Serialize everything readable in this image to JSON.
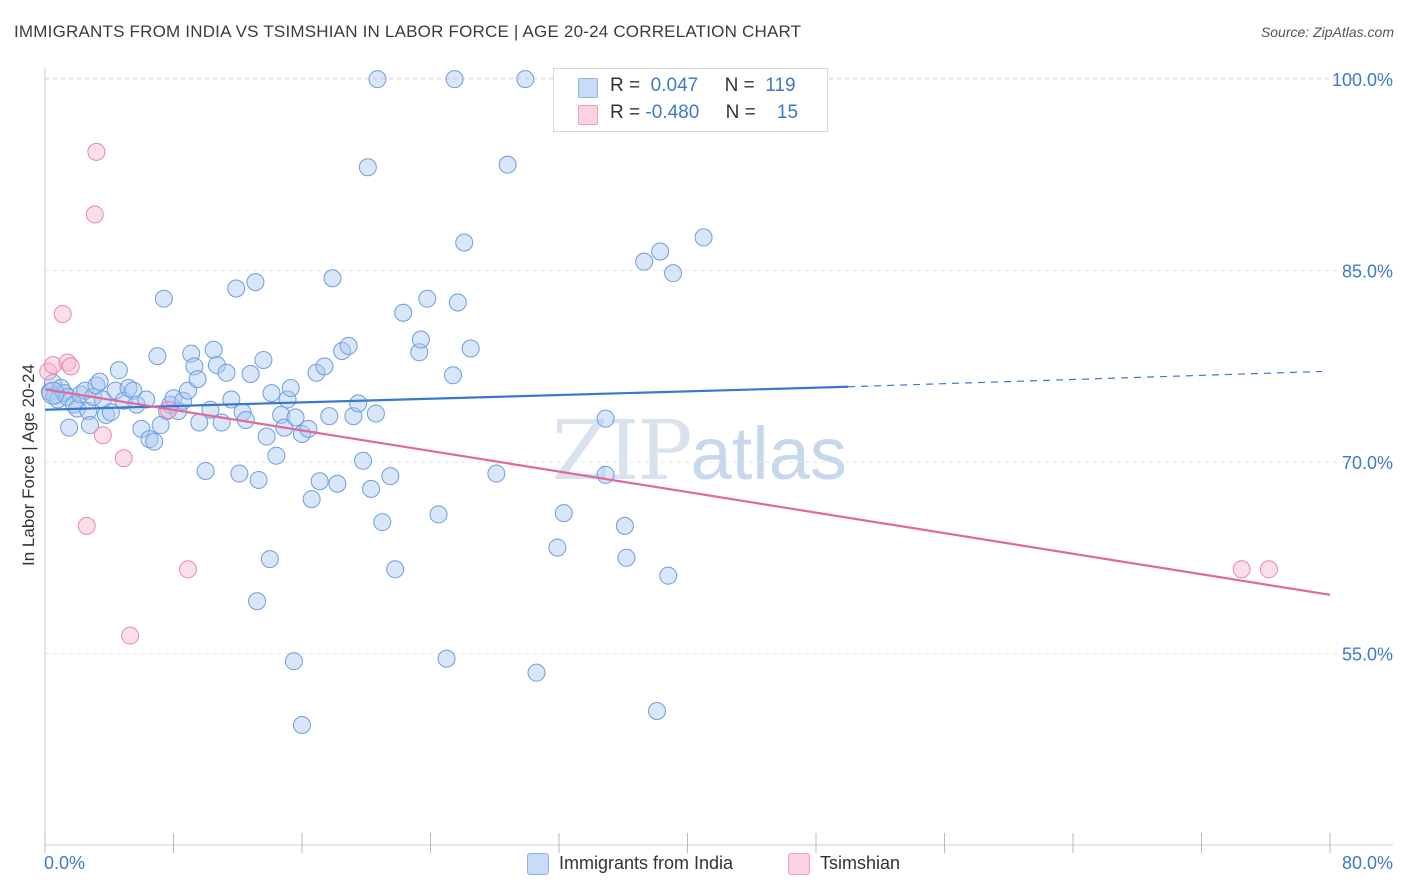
{
  "title": "IMMIGRANTS FROM INDIA VS TSIMSHIAN IN LABOR FORCE | AGE 20-24 CORRELATION CHART",
  "source": "Source: ZipAtlas.com",
  "watermark": {
    "zip": "ZIP",
    "atlas": "atlas"
  },
  "legend": {
    "rows": [
      {
        "r_label": "R =",
        "r_value": "0.047",
        "n_label": "N =",
        "n_value": "119",
        "color": "#aac8f0"
      },
      {
        "r_label": "R =",
        "r_value": "-0.480",
        "n_label": "N =",
        "n_value": "15",
        "color": "#f4b8cc"
      }
    ]
  },
  "bottom_legend": [
    {
      "label": "Immigrants from India",
      "color": "#aac8f0"
    },
    {
      "label": "Tsimshian",
      "color": "#f4b8cc"
    }
  ],
  "chart_data": {
    "type": "scatter",
    "xlabel": "",
    "ylabel": "In Labor Force | Age 20-24",
    "xlim": [
      0,
      80
    ],
    "ylim": [
      40,
      101.5
    ],
    "x_tick_labels": [
      "0.0%",
      "80.0%"
    ],
    "y_ticks": [
      55,
      70,
      85,
      100
    ],
    "y_tick_labels": [
      "55.0%",
      "70.0%",
      "85.0%",
      "100.0%"
    ],
    "grid": true,
    "series": [
      {
        "name": "Immigrants from India",
        "color": "#6a9fe0",
        "fill": "#aac8f0",
        "trend": {
          "x0": 0,
          "y0": 74.1,
          "x1": 50,
          "y1": 75.9,
          "dashed_to_x": 80,
          "dashed_to_y": 77.1,
          "color": "#3a78cf"
        },
        "points": [
          [
            0.3,
            75.5
          ],
          [
            0.5,
            76.2
          ],
          [
            0.6,
            75.2
          ],
          [
            0.8,
            74.9
          ],
          [
            1.0,
            75.8
          ],
          [
            1.2,
            75.4
          ],
          [
            1.4,
            75.1
          ],
          [
            1.5,
            72.7
          ],
          [
            1.8,
            74.5
          ],
          [
            2.0,
            74.2
          ],
          [
            2.2,
            75.3
          ],
          [
            2.5,
            75.6
          ],
          [
            2.7,
            74.0
          ],
          [
            2.8,
            72.9
          ],
          [
            3.0,
            75.1
          ],
          [
            3.2,
            76.0
          ],
          [
            3.4,
            76.3
          ],
          [
            3.6,
            74.9
          ],
          [
            3.8,
            73.7
          ],
          [
            4.1,
            73.9
          ],
          [
            4.4,
            75.6
          ],
          [
            4.6,
            77.2
          ],
          [
            4.9,
            74.8
          ],
          [
            5.2,
            75.8
          ],
          [
            5.5,
            75.6
          ],
          [
            5.7,
            74.5
          ],
          [
            6.0,
            72.6
          ],
          [
            6.3,
            74.9
          ],
          [
            6.5,
            71.8
          ],
          [
            6.8,
            71.6
          ],
          [
            7.0,
            78.3
          ],
          [
            7.2,
            72.9
          ],
          [
            7.4,
            82.8
          ],
          [
            7.6,
            74.0
          ],
          [
            7.8,
            74.5
          ],
          [
            8.0,
            75.0
          ],
          [
            8.3,
            74.0
          ],
          [
            8.6,
            74.8
          ],
          [
            8.9,
            75.6
          ],
          [
            9.1,
            78.5
          ],
          [
            9.3,
            77.5
          ],
          [
            9.5,
            76.5
          ],
          [
            9.6,
            73.1
          ],
          [
            10.0,
            69.3
          ],
          [
            10.3,
            74.1
          ],
          [
            10.5,
            78.8
          ],
          [
            10.7,
            77.6
          ],
          [
            11.0,
            73.1
          ],
          [
            11.3,
            77.0
          ],
          [
            11.6,
            74.9
          ],
          [
            11.9,
            83.6
          ],
          [
            12.1,
            69.1
          ],
          [
            12.3,
            73.9
          ],
          [
            12.5,
            73.3
          ],
          [
            12.8,
            76.9
          ],
          [
            13.1,
            84.1
          ],
          [
            13.3,
            68.6
          ],
          [
            13.6,
            78.0
          ],
          [
            13.8,
            72.0
          ],
          [
            14.1,
            75.4
          ],
          [
            14.4,
            70.5
          ],
          [
            14.7,
            73.7
          ],
          [
            14.9,
            72.7
          ],
          [
            15.1,
            74.9
          ],
          [
            15.3,
            75.8
          ],
          [
            15.6,
            73.5
          ],
          [
            16.0,
            72.2
          ],
          [
            16.4,
            72.6
          ],
          [
            14.0,
            62.4
          ],
          [
            13.2,
            59.1
          ],
          [
            15.5,
            54.4
          ],
          [
            16.0,
            49.4
          ],
          [
            16.6,
            67.1
          ],
          [
            16.9,
            77.0
          ],
          [
            17.1,
            68.5
          ],
          [
            17.4,
            77.5
          ],
          [
            17.7,
            73.6
          ],
          [
            17.9,
            84.4
          ],
          [
            18.2,
            68.3
          ],
          [
            18.5,
            78.7
          ],
          [
            18.9,
            79.1
          ],
          [
            19.2,
            73.6
          ],
          [
            19.5,
            74.6
          ],
          [
            19.8,
            70.1
          ],
          [
            20.1,
            93.1
          ],
          [
            20.3,
            67.9
          ],
          [
            20.6,
            73.8
          ],
          [
            21.0,
            65.3
          ],
          [
            21.5,
            68.9
          ],
          [
            21.8,
            61.6
          ],
          [
            20.7,
            100.0
          ],
          [
            22.3,
            81.7
          ],
          [
            23.3,
            78.6
          ],
          [
            23.4,
            79.6
          ],
          [
            23.8,
            82.8
          ],
          [
            24.5,
            65.9
          ],
          [
            25.0,
            54.6
          ],
          [
            25.4,
            76.8
          ],
          [
            25.7,
            82.5
          ],
          [
            26.1,
            87.2
          ],
          [
            26.5,
            78.9
          ],
          [
            25.5,
            100.0
          ],
          [
            28.1,
            69.1
          ],
          [
            28.8,
            93.3
          ],
          [
            29.9,
            100.0
          ],
          [
            30.6,
            53.5
          ],
          [
            31.9,
            63.3
          ],
          [
            32.3,
            66.0
          ],
          [
            34.9,
            73.4
          ],
          [
            36.1,
            65.0
          ],
          [
            36.2,
            62.5
          ],
          [
            34.9,
            69.0
          ],
          [
            37.3,
            85.7
          ],
          [
            38.3,
            86.5
          ],
          [
            38.1,
            50.5
          ],
          [
            38.8,
            61.1
          ],
          [
            39.1,
            84.8
          ],
          [
            41.0,
            87.6
          ],
          [
            39.8,
            99.6
          ]
        ]
      },
      {
        "name": "Tsimshian",
        "color": "#e88aa8",
        "fill": "#f4b8cc",
        "trend": {
          "x0": 0,
          "y0": 75.7,
          "x1": 80,
          "y1": 59.6,
          "color": "#e0689a"
        },
        "points": [
          [
            0.2,
            77.1
          ],
          [
            0.5,
            77.6
          ],
          [
            1.1,
            81.6
          ],
          [
            1.4,
            77.8
          ],
          [
            1.6,
            77.5
          ],
          [
            2.6,
            65.0
          ],
          [
            3.2,
            94.3
          ],
          [
            3.1,
            89.4
          ],
          [
            3.6,
            72.1
          ],
          [
            4.9,
            70.3
          ],
          [
            5.3,
            56.4
          ],
          [
            7.7,
            74.1
          ],
          [
            8.9,
            61.6
          ],
          [
            74.5,
            61.6
          ],
          [
            76.2,
            61.6
          ]
        ]
      }
    ]
  }
}
